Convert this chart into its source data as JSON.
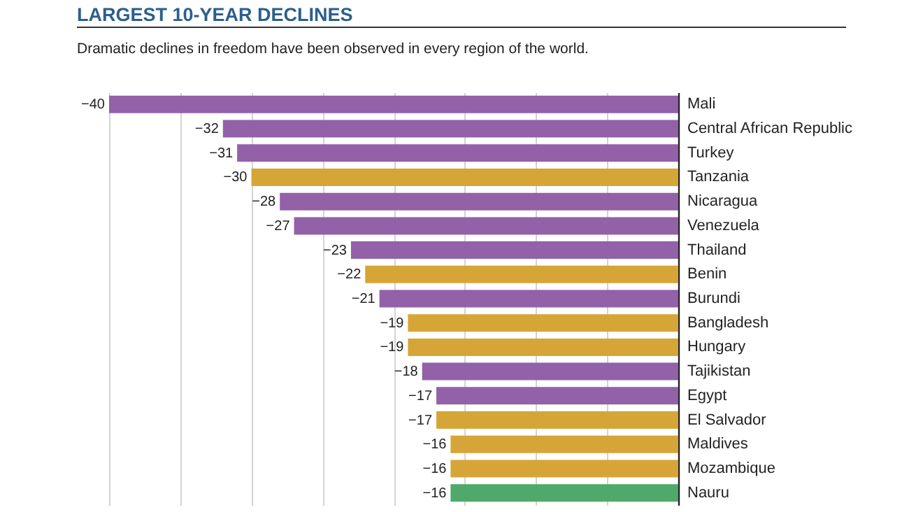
{
  "chart_data": {
    "type": "bar",
    "orientation": "horizontal",
    "title": "LARGEST 10-YEAR DECLINES",
    "subtitle": "Dramatic declines in freedom have been observed in every region of the world.",
    "categories": [
      "Mali",
      "Central African Republic",
      "Turkey",
      "Tanzania",
      "Nicaragua",
      "Venezuela",
      "Thailand",
      "Benin",
      "Burundi",
      "Bangladesh",
      "Hungary",
      "Tajikistan",
      "Egypt",
      "El Salvador",
      "Maldives",
      "Mozambique",
      "Nauru"
    ],
    "values": [
      -40,
      -32,
      -31,
      -30,
      -28,
      -27,
      -23,
      -22,
      -21,
      -19,
      -19,
      -18,
      -17,
      -17,
      -16,
      -16,
      -16
    ],
    "colors": [
      "#9261a8",
      "#9261a8",
      "#9261a8",
      "#d5a637",
      "#9261a8",
      "#9261a8",
      "#9261a8",
      "#d5a637",
      "#9261a8",
      "#d5a637",
      "#d5a637",
      "#9261a8",
      "#9261a8",
      "#d5a637",
      "#d5a637",
      "#d5a637",
      "#4ea96a"
    ],
    "xlim": [
      -40,
      0
    ],
    "xticks": [
      {
        "value": -40,
        "label": null
      },
      {
        "value": -35,
        "label": null
      },
      {
        "value": -30,
        "label": null
      },
      {
        "value": -25,
        "label": null
      },
      {
        "value": -20,
        "label": null
      },
      {
        "value": -15,
        "label": null
      },
      {
        "value": -10,
        "label": null
      },
      {
        "value": -5,
        "label": null
      },
      {
        "value": 0,
        "label": null
      }
    ],
    "grid": "x",
    "tick_labels": "y",
    "data_labels": true
  }
}
